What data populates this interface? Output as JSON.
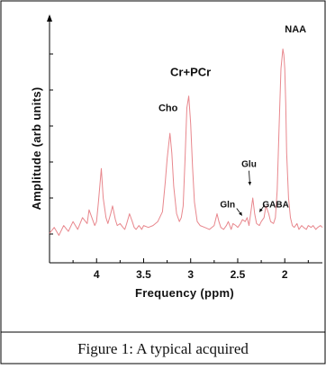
{
  "chart_data": {
    "type": "line",
    "title": "",
    "xlabel": "Frequency (ppm)",
    "ylabel": "Amplitude (arb units)",
    "x_reversed": true,
    "xlim": [
      4.5,
      1.6
    ],
    "ylim": [
      0,
      100
    ],
    "x_ticks": [
      4,
      3.5,
      3,
      2.5,
      2
    ],
    "x_tick_labels": [
      "4",
      "3.5",
      "3",
      "2.5",
      "2"
    ],
    "y_ticks_labeled": false,
    "grid": false,
    "line_color": "#e8878d",
    "series": [
      {
        "x": [
          4.5,
          4.45,
          4.4,
          4.35,
          4.3,
          4.25,
          4.2,
          4.15,
          4.1,
          4.08,
          4.05,
          4.02,
          4.0,
          3.98,
          3.95,
          3.93,
          3.9,
          3.88,
          3.85,
          3.83,
          3.8,
          3.78,
          3.75,
          3.72,
          3.7,
          3.68,
          3.65,
          3.62,
          3.6,
          3.58,
          3.55,
          3.52,
          3.5,
          3.45,
          3.4,
          3.35,
          3.3,
          3.27,
          3.25,
          3.22,
          3.2,
          3.18,
          3.15,
          3.12,
          3.1,
          3.08,
          3.06,
          3.04,
          3.02,
          3.0,
          2.98,
          2.96,
          2.93,
          2.9,
          2.85,
          2.8,
          2.75,
          2.72,
          2.7,
          2.68,
          2.65,
          2.62,
          2.6,
          2.57,
          2.55,
          2.52,
          2.5,
          2.47,
          2.45,
          2.42,
          2.4,
          2.38,
          2.36,
          2.34,
          2.32,
          2.3,
          2.27,
          2.25,
          2.22,
          2.2,
          2.17,
          2.15,
          2.12,
          2.1,
          2.08,
          2.06,
          2.04,
          2.02,
          2.01,
          2.0,
          1.99,
          1.98,
          1.96,
          1.94,
          1.92,
          1.9,
          1.87,
          1.85,
          1.82,
          1.8,
          1.77,
          1.75,
          1.72,
          1.7,
          1.67,
          1.65,
          1.62,
          1.6
        ],
        "y": [
          4,
          7,
          3,
          8,
          5,
          10,
          6,
          12,
          9,
          16,
          12,
          8,
          10,
          20,
          37,
          22,
          12,
          9,
          14,
          18,
          11,
          8,
          9,
          7,
          6,
          9,
          14,
          10,
          7,
          6,
          8,
          6,
          8,
          7,
          8,
          10,
          15,
          30,
          42,
          55,
          45,
          28,
          14,
          10,
          12,
          18,
          42,
          68,
          74,
          60,
          38,
          20,
          10,
          8,
          7,
          6,
          8,
          14,
          10,
          7,
          6,
          8,
          10,
          6,
          9,
          8,
          7,
          9,
          11,
          10,
          12,
          8,
          15,
          22,
          14,
          9,
          8,
          10,
          12,
          18,
          14,
          10,
          9,
          12,
          26,
          58,
          88,
          98,
          95,
          88,
          70,
          45,
          22,
          12,
          8,
          7,
          9,
          6,
          8,
          7,
          6,
          8,
          7,
          8,
          6,
          7,
          8,
          7
        ]
      }
    ],
    "annotations": [
      {
        "text": "NAA",
        "x": 2.0,
        "y": 100
      },
      {
        "text": "Cr+PCr",
        "x": 3.02,
        "y": 76
      },
      {
        "text": "Cho",
        "x": 3.24,
        "y": 58
      },
      {
        "text": "Glu",
        "x": 2.38,
        "y": 24
      },
      {
        "text": "Gln",
        "x": 2.55,
        "y": 14
      },
      {
        "text": "GABA",
        "x": 2.25,
        "y": 14
      }
    ]
  },
  "caption": "Figure 1: A typical acquired"
}
